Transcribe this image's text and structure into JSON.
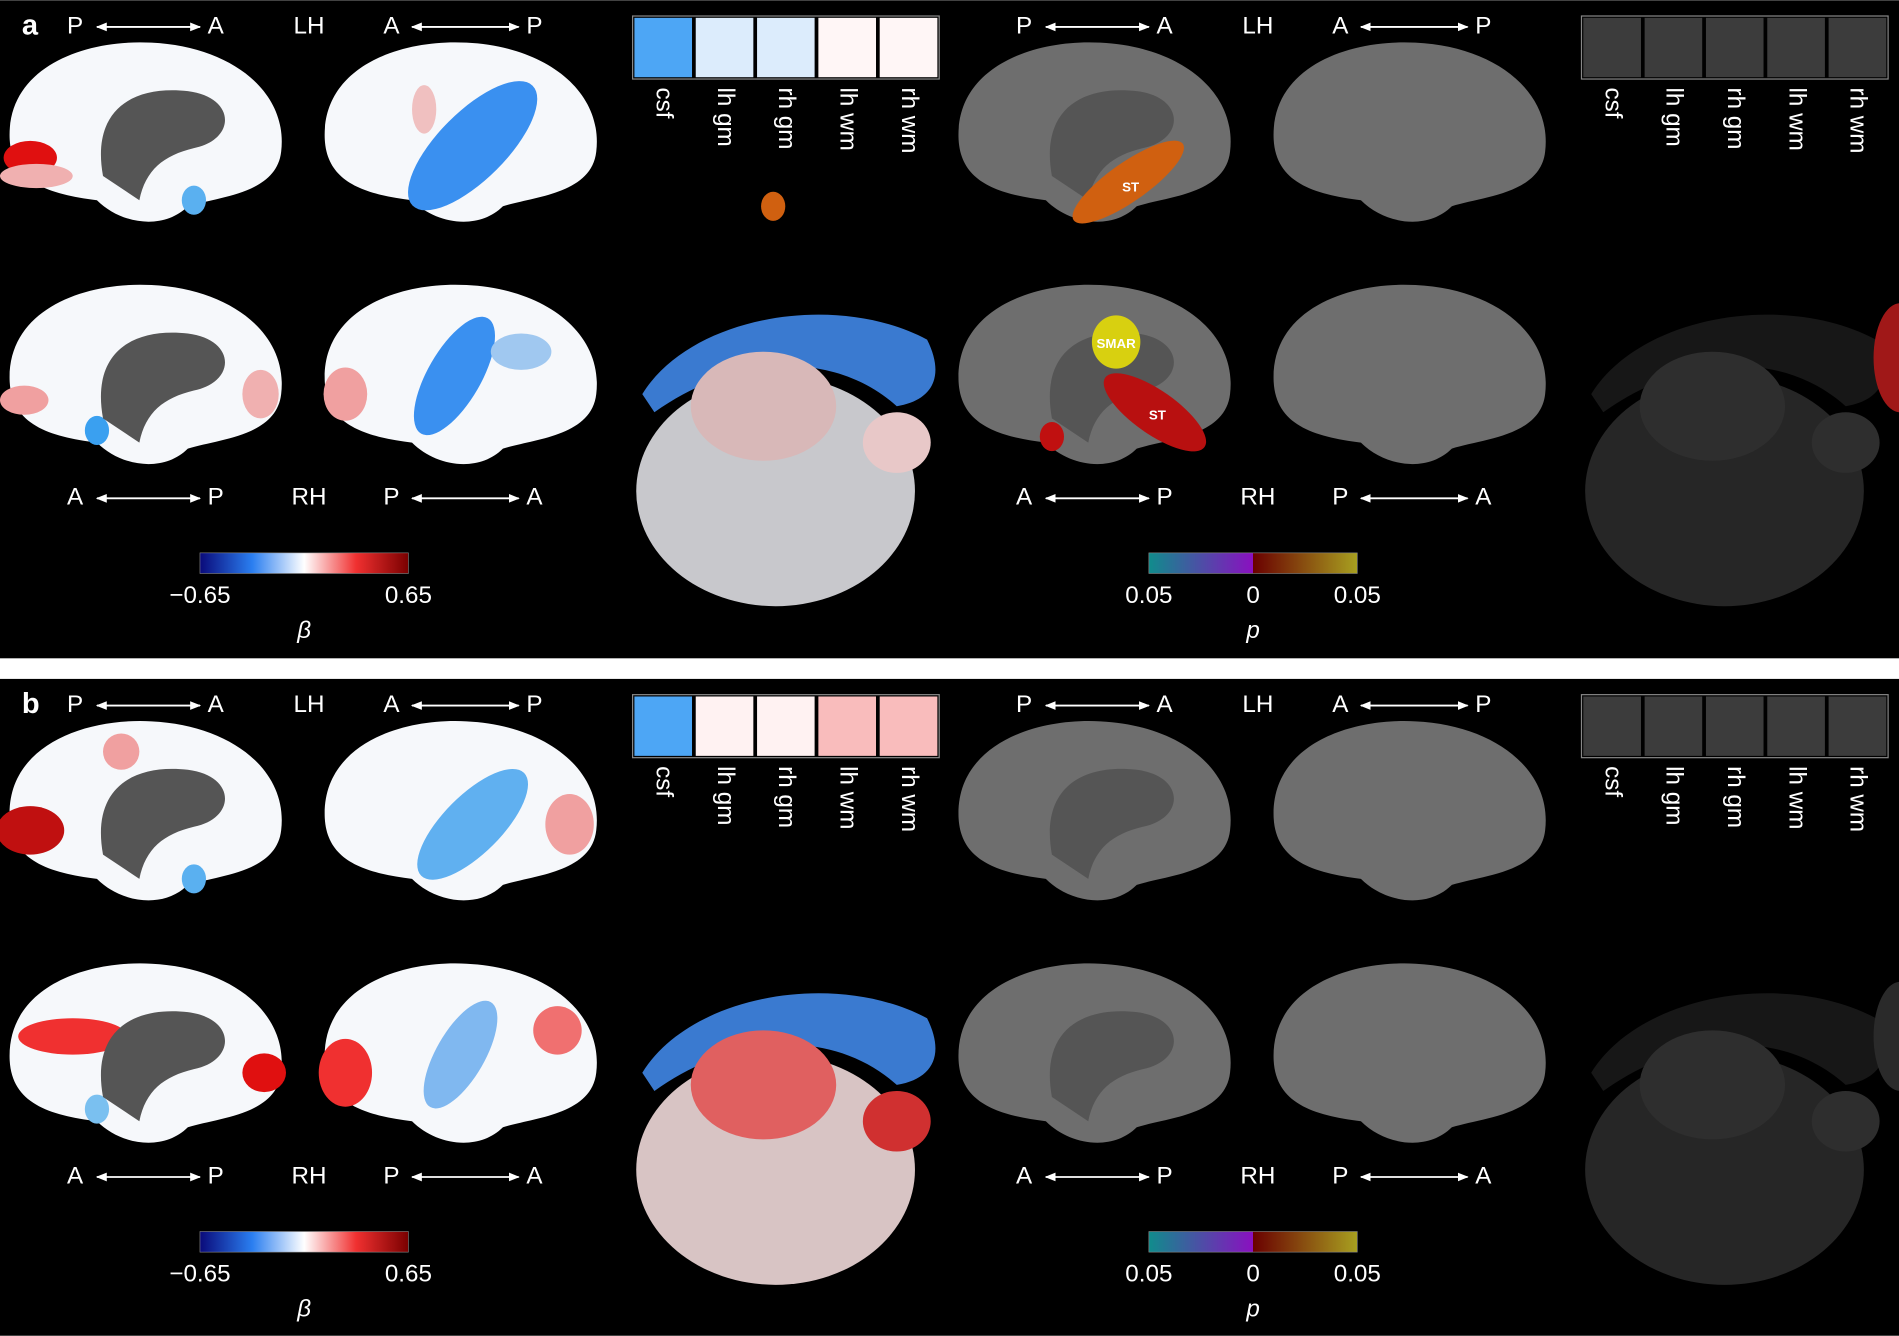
{
  "panels": [
    {
      "label": "a",
      "beta": {
        "top_orientation": [
          "P",
          "A",
          "LH",
          "A",
          "P"
        ],
        "bottom_orientation": [
          "A",
          "P",
          "RH",
          "P",
          "A"
        ],
        "tissues": [
          "csf",
          "lh gm",
          "rh gm",
          "lh wm",
          "rh wm"
        ],
        "tissue_colors": [
          "#4da6f5",
          "#dcecfc",
          "#dcecfc",
          "#fff6f6",
          "#fff6f6"
        ],
        "colorbar": {
          "ticks": [
            {
              "value": -0.65,
              "label": "−0.65"
            },
            0.65
          ],
          "symbol": "β"
        }
      },
      "p": {
        "top_orientation": [
          "P",
          "A",
          "LH",
          "A",
          "P"
        ],
        "bottom_orientation": [
          "A",
          "P",
          "RH",
          "P",
          "A"
        ],
        "tissues": [
          "csf",
          "lh gm",
          "rh gm",
          "lh wm",
          "rh wm"
        ],
        "tissue_colors": [
          "#3c3c3c",
          "#3c3c3c",
          "#3c3c3c",
          "#3c3c3c",
          "#3c3c3c"
        ],
        "region_labels": [
          "ST",
          "SMAR",
          "ST"
        ],
        "colorbar": {
          "ticks": [
            0.05,
            0,
            0.05
          ],
          "symbol": "p"
        }
      }
    },
    {
      "label": "b",
      "beta": {
        "top_orientation": [
          "P",
          "A",
          "LH",
          "A",
          "P"
        ],
        "bottom_orientation": [
          "A",
          "P",
          "RH",
          "P",
          "A"
        ],
        "tissues": [
          "csf",
          "lh gm",
          "rh gm",
          "lh wm",
          "rh wm"
        ],
        "tissue_colors": [
          "#4da6f5",
          "#fff2f2",
          "#fff2f2",
          "#f9bcbc",
          "#f9bcbc"
        ],
        "colorbar": {
          "ticks": [
            {
              "value": -0.65,
              "label": "−0.65"
            },
            0.65
          ],
          "symbol": "β"
        }
      },
      "p": {
        "top_orientation": [
          "P",
          "A",
          "LH",
          "A",
          "P"
        ],
        "bottom_orientation": [
          "A",
          "P",
          "RH",
          "P",
          "A"
        ],
        "tissues": [
          "csf",
          "lh gm",
          "rh gm",
          "lh wm",
          "rh wm"
        ],
        "tissue_colors": [
          "#3c3c3c",
          "#3c3c3c",
          "#3c3c3c",
          "#3c3c3c",
          "#3c3c3c"
        ],
        "colorbar": {
          "ticks": [
            0.05,
            0,
            0.05
          ],
          "symbol": "p"
        }
      }
    }
  ]
}
